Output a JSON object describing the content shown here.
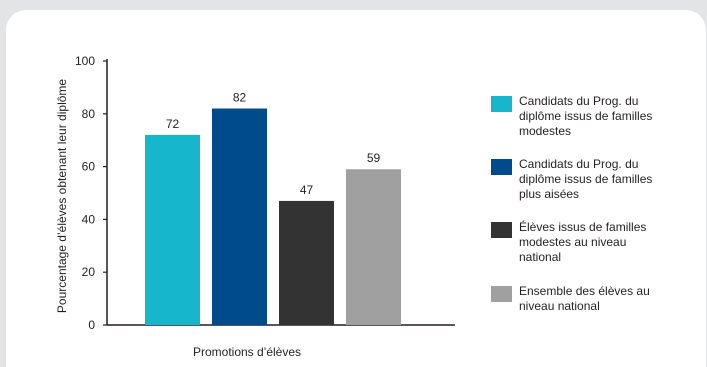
{
  "chart_data": {
    "type": "bar",
    "ylabel": "Pourcentage d’élèves obtenant leur diplôme",
    "xlabel": "Promotions d’élèves",
    "ylim": [
      0,
      100
    ],
    "yticks": [
      0,
      20,
      40,
      60,
      80,
      100
    ],
    "legend_position": "right",
    "series": [
      {
        "name": "Candidats du Prog. du diplôme issus de familles modestes",
        "value": 72,
        "color": "#16b6cc",
        "legend_lines": [
          "Candidats du Prog. du",
          "diplôme issus de familles",
          "modestes"
        ]
      },
      {
        "name": "Candidats du Prog. du diplôme issus de familles plus aisées",
        "value": 82,
        "color": "#004b8c",
        "legend_lines": [
          "Candidats du Prog. du",
          "diplôme issus de familles",
          "plus aisées"
        ]
      },
      {
        "name": "Élèves issus de familles modestes au niveau national",
        "value": 47,
        "color": "#333333",
        "legend_lines": [
          "Élèves issus de familles",
          "modestes au niveau",
          "national"
        ]
      },
      {
        "name": "Ensemble des élèves au niveau national",
        "value": 59,
        "color": "#a0a0a0",
        "legend_lines": [
          "Ensemble des élèves au",
          "niveau national"
        ]
      }
    ]
  }
}
